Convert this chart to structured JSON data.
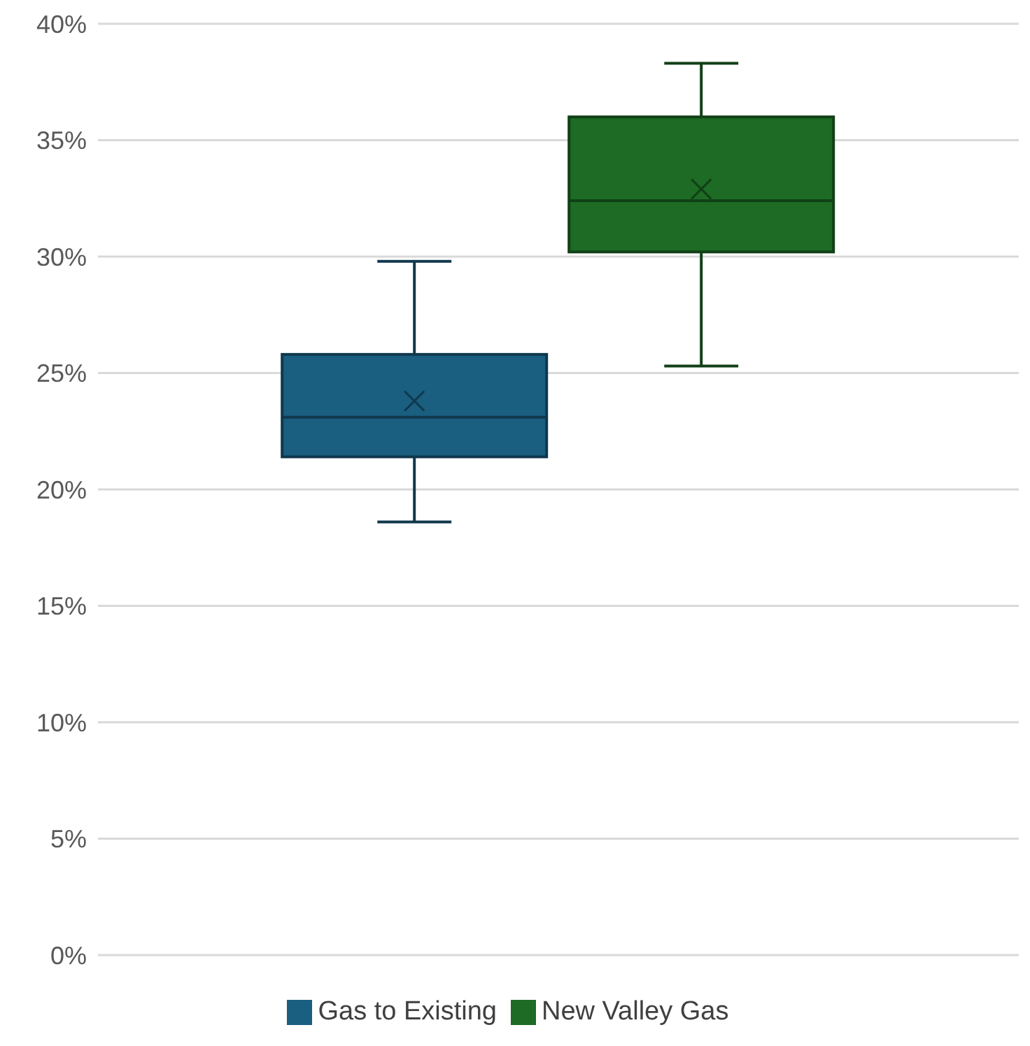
{
  "chart_data": {
    "type": "box",
    "categories": [
      null
    ],
    "series": [
      {
        "name": "Gas to Existing",
        "color": "#1a5e80",
        "boxes": [
          {
            "low": 18.6,
            "q1": 21.4,
            "median": 23.1,
            "q3": 25.8,
            "high": 29.8,
            "mean": 23.8
          }
        ]
      },
      {
        "name": "New Valley Gas",
        "color": "#1d6b24",
        "boxes": [
          {
            "low": 25.3,
            "q1": 30.2,
            "median": 32.4,
            "q3": 36.0,
            "high": 38.3,
            "mean": 32.9
          }
        ]
      }
    ],
    "ylim": [
      0,
      40
    ],
    "yticks": [
      {
        "value": 0,
        "label": "0%"
      },
      {
        "value": 5,
        "label": "5%"
      },
      {
        "value": 10,
        "label": "10%"
      },
      {
        "value": 15,
        "label": "15%"
      },
      {
        "value": 20,
        "label": "20%"
      },
      {
        "value": 25,
        "label": "25%"
      },
      {
        "value": 30,
        "label": "30%"
      },
      {
        "value": 35,
        "label": "35%"
      },
      {
        "value": 40,
        "label": "40%"
      }
    ],
    "grid": "y",
    "legend": "bottom"
  }
}
